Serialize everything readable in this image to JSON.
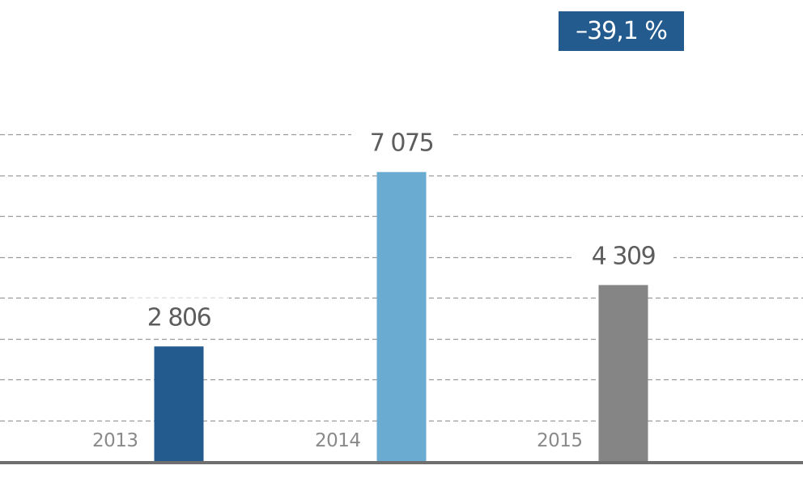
{
  "badge": {
    "text": "–39,1 %",
    "color": "#245b8e"
  },
  "chart_data": {
    "type": "bar",
    "categories": [
      "2013",
      "2014",
      "2015"
    ],
    "values": [
      2806,
      7075,
      4309
    ],
    "value_labels": [
      "2 806",
      "7 075",
      "4 309"
    ],
    "colors": [
      "#245b8e",
      "#6aabd2",
      "#858585"
    ],
    "title": "",
    "xlabel": "",
    "ylabel": "",
    "ylim": [
      0,
      8000
    ],
    "grid": true
  }
}
